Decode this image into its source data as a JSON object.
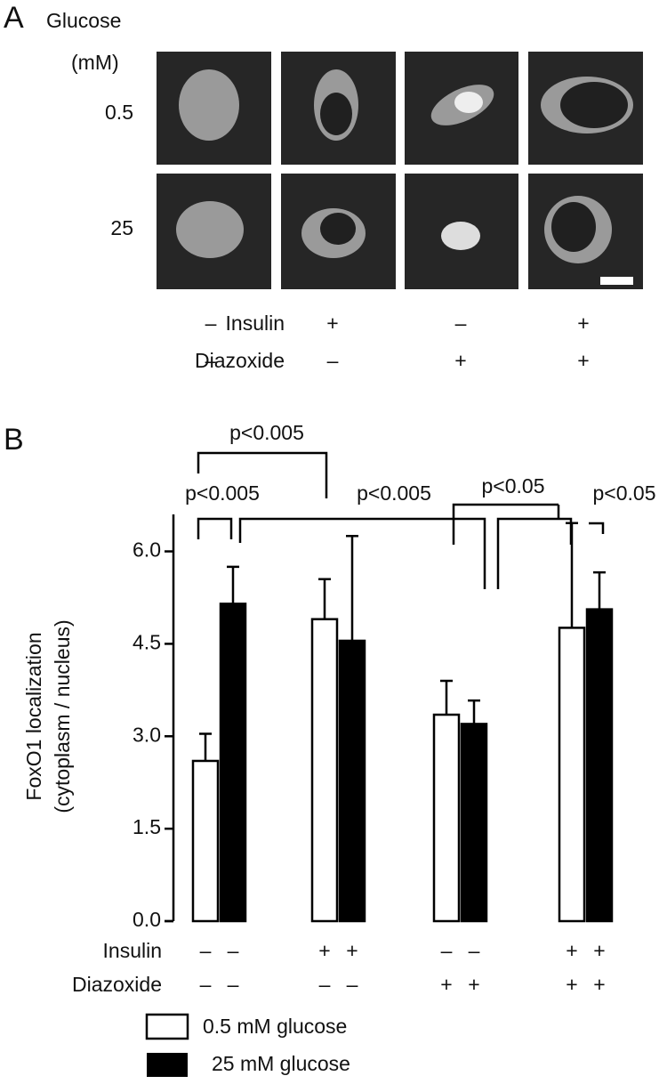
{
  "panel_a": {
    "label": "A",
    "header_lines": [
      "Glucose",
      "(mM)"
    ],
    "rows": [
      "0.5",
      "25"
    ],
    "treatments": [
      {
        "name": "Insulin",
        "signs": [
          "–",
          "+",
          "–",
          "+"
        ]
      },
      {
        "name": "Diazoxide",
        "signs": [
          "–",
          "–",
          "+",
          "+"
        ]
      }
    ]
  },
  "chart_data": {
    "type": "bar",
    "panel_label": "B",
    "ylabel": [
      "FoxO1 localization",
      "(cytoplasm / nucleus)"
    ],
    "categories": [
      null,
      null,
      null,
      null
    ],
    "series": [
      {
        "name": "0.5 mM glucose",
        "color": "#ffffff",
        "values": [
          2.6,
          4.9,
          3.35,
          4.76
        ],
        "errors": [
          0.44,
          0.65,
          0.55,
          1.7
        ]
      },
      {
        "name": "25 mM glucose",
        "color": "#000000",
        "values": [
          5.15,
          4.55,
          3.2,
          5.06
        ],
        "errors": [
          0.6,
          1.7,
          0.38,
          0.6
        ]
      }
    ],
    "ylim": [
      0,
      6.6
    ],
    "yticks": [
      {
        "value": 0,
        "label": "0.0"
      },
      {
        "value": 1.5,
        "label": "1.5"
      },
      {
        "value": 3,
        "label": "3.0"
      },
      {
        "value": 4.5,
        "label": "4.5"
      },
      {
        "value": 6,
        "label": "6.0"
      }
    ],
    "treatments": [
      {
        "name": "Insulin",
        "signs": [
          "–",
          "–",
          "+",
          "+",
          "–",
          "–",
          "+",
          "+"
        ]
      },
      {
        "name": "Diazoxide",
        "signs": [
          "–",
          "–",
          "–",
          "–",
          "+",
          "+",
          "+",
          "+"
        ]
      }
    ],
    "annotations": [
      "p<0.005",
      "p<0.005",
      "p<0.005",
      "p<0.05",
      "p<0.05"
    ]
  }
}
